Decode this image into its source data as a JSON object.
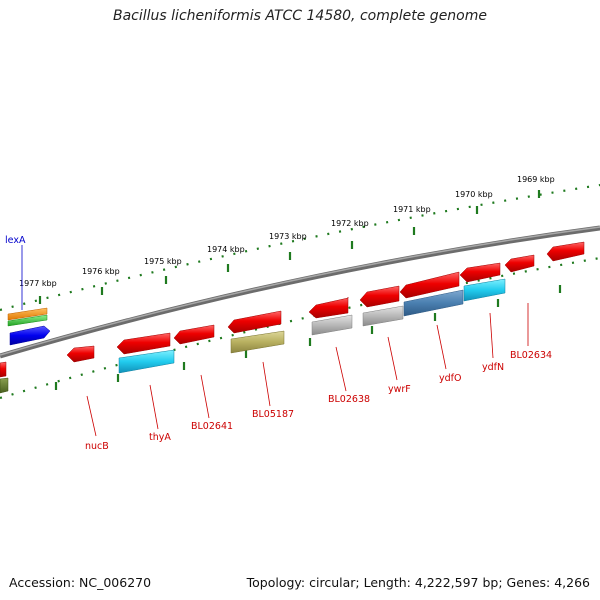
{
  "title": "Bacillus licheniformis ATCC 14580, complete genome",
  "footer": {
    "accession": "Accession: NC_006270",
    "topology": "Topology: circular; Length: 4,222,597 bp; Genes: 4,266"
  },
  "ruler_labels": [
    "1977 kbp",
    "1976 kbp",
    "1975 kbp",
    "1974 kbp",
    "1973 kbp",
    "1972 kbp",
    "1971 kbp",
    "1970 kbp",
    "1969 kbp"
  ],
  "gene_labels": [
    "lexA",
    "nucB",
    "thyA",
    "BL02641",
    "BL05187",
    "BL02638",
    "ywrF",
    "ydfO",
    "ydfN",
    "BL02634"
  ],
  "colors": {
    "backbone": "#7a7a7a",
    "ruler": "#1f7a1f",
    "gene_red": "#ee0000",
    "gene_grey": "#b8b8b8",
    "gene_cyan": "#22ccee",
    "gene_steel": "#4a7fb0",
    "gene_olive": "#b8b060",
    "gene_blue": "#0000ee",
    "label_red": "#cc0000",
    "label_blue": "#0000cc"
  }
}
